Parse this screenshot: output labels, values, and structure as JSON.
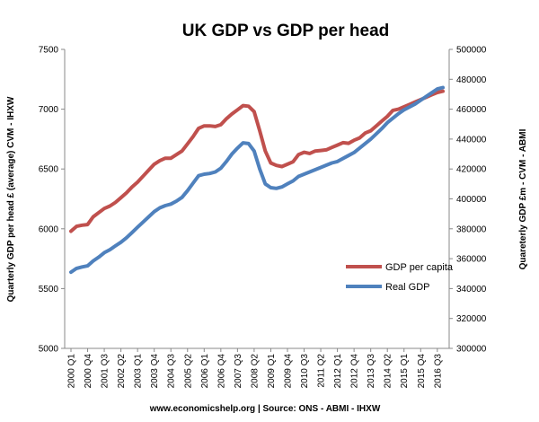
{
  "chart_data": {
    "type": "line",
    "title": "UK GDP vs GDP per head",
    "ylabel_left": "Quarterly GDP per head £ (average) CVM - IHXW",
    "ylabel_right": "Quareterly GDP £m - CVM - ABMI",
    "footer": "www.economicshelp.org | Source: ONS - ABMI - IHXW",
    "y_left": {
      "min": 5000,
      "max": 7500,
      "ticks": [
        5000,
        5500,
        6000,
        6500,
        7000,
        7500
      ]
    },
    "y_right": {
      "min": 300000,
      "max": 500000,
      "ticks": [
        300000,
        320000,
        340000,
        360000,
        380000,
        400000,
        420000,
        440000,
        460000,
        480000,
        500000
      ]
    },
    "x_tick_labels": [
      "2000 Q1",
      "2000 Q4",
      "2001 Q3",
      "2002 Q2",
      "2003 Q1",
      "2003 Q4",
      "2004 Q3",
      "2005 Q2",
      "2006 Q1",
      "2006 Q4",
      "2007 Q3",
      "2008 Q2",
      "2009 Q1",
      "2009 Q4",
      "2010 Q3",
      "2011 Q2",
      "2012 Q1",
      "2012 Q4",
      "2013 Q3",
      "2014 Q2",
      "2015 Q1",
      "2015 Q4",
      "2016 Q3"
    ],
    "x_tick_every": 3,
    "n_points": 68,
    "grid": false,
    "legend_position": "right-middle",
    "series": [
      {
        "name": "GDP per capita",
        "axis": "left",
        "color": "#c0504d",
        "values": [
          5980,
          6020,
          6030,
          6035,
          6100,
          6135,
          6170,
          6190,
          6220,
          6260,
          6300,
          6350,
          6390,
          6440,
          6490,
          6540,
          6570,
          6590,
          6590,
          6620,
          6650,
          6710,
          6770,
          6840,
          6860,
          6860,
          6855,
          6870,
          6920,
          6960,
          6995,
          7030,
          7025,
          6980,
          6820,
          6650,
          6550,
          6530,
          6520,
          6540,
          6560,
          6620,
          6640,
          6630,
          6650,
          6655,
          6660,
          6680,
          6700,
          6720,
          6715,
          6740,
          6760,
          6800,
          6820,
          6860,
          6900,
          6940,
          6990,
          7000,
          7020,
          7040,
          7060,
          7080,
          7100,
          7120,
          7140,
          7150
        ]
      },
      {
        "name": "Real GDP",
        "axis": "right",
        "color": "#4f81bd",
        "values": [
          351000,
          353500,
          354500,
          355200,
          358500,
          361000,
          364000,
          366000,
          368500,
          371000,
          374000,
          377500,
          381000,
          384500,
          388000,
          391500,
          394000,
          395500,
          396500,
          398500,
          401000,
          405500,
          410500,
          415500,
          416500,
          417000,
          418000,
          420500,
          425000,
          430000,
          434000,
          437500,
          437000,
          432000,
          420000,
          410000,
          407500,
          407000,
          408000,
          410000,
          412000,
          415000,
          416500,
          418000,
          419500,
          421000,
          422500,
          424000,
          425000,
          427000,
          429000,
          431000,
          434000,
          437000,
          440000,
          443500,
          447000,
          451000,
          454000,
          457000,
          459500,
          461500,
          463500,
          466000,
          468500,
          471000,
          473500,
          474500
        ]
      }
    ]
  }
}
